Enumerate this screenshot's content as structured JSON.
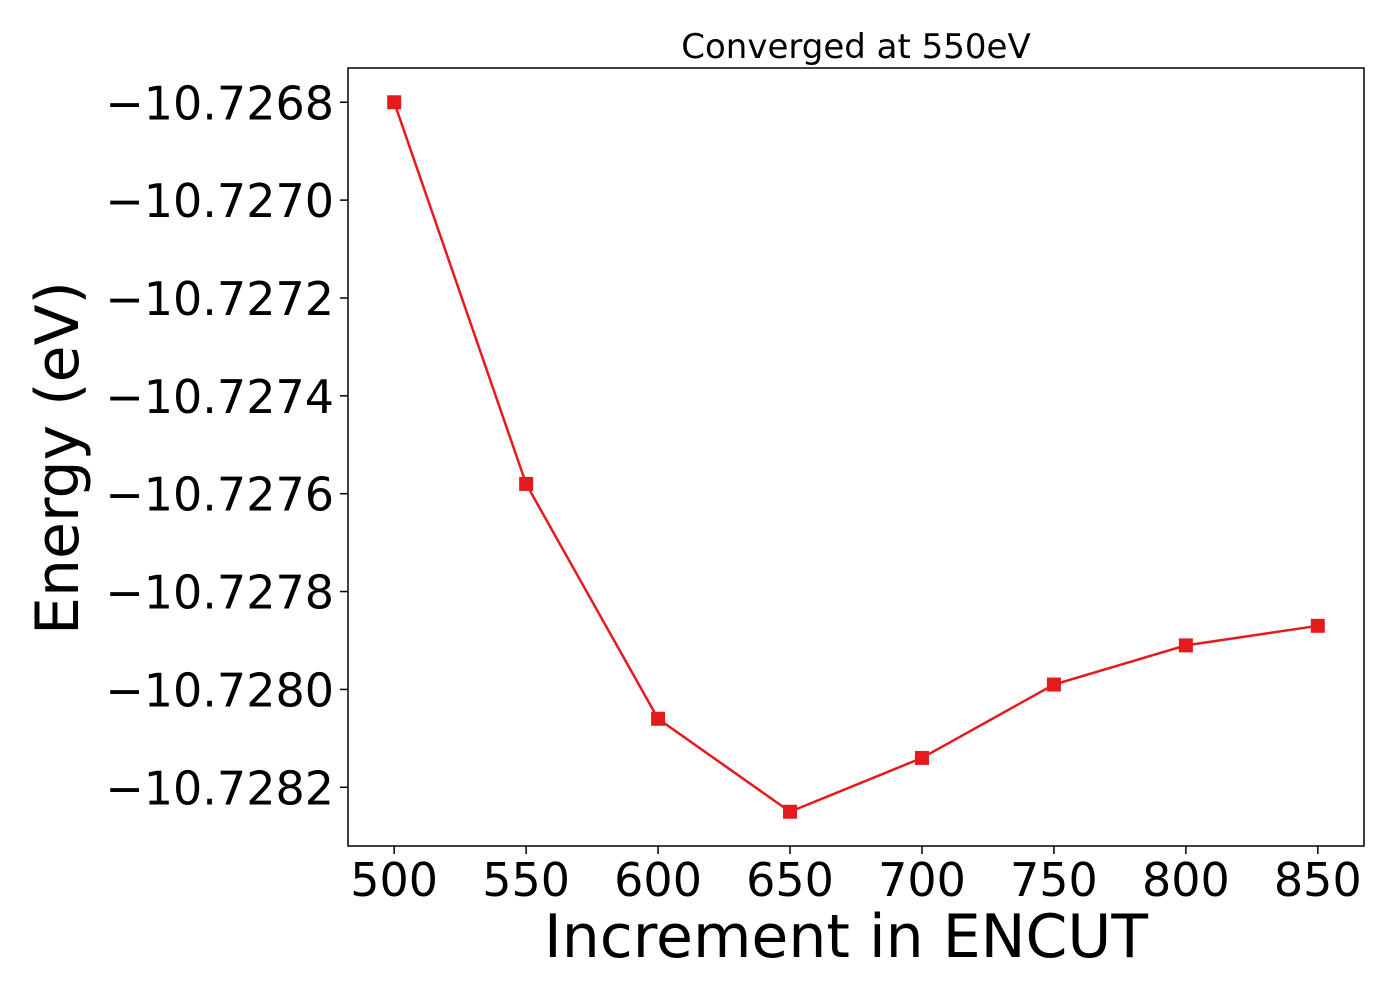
{
  "chart_data": {
    "type": "line",
    "title": "Converged at 550eV",
    "xlabel": "Increment in ENCUT",
    "ylabel": "Energy (eV)",
    "x": [
      500,
      550,
      600,
      650,
      700,
      750,
      800,
      850
    ],
    "series": [
      {
        "values": [
          -10.7268,
          -10.72758,
          -10.72806,
          -10.72825,
          -10.72814,
          -10.72799,
          -10.72791,
          -10.72787
        ],
        "color": "#e41a1c",
        "marker": "square"
      }
    ],
    "xticks": [
      500,
      550,
      600,
      650,
      700,
      750,
      800,
      850
    ],
    "xtick_labels": [
      "500",
      "550",
      "600",
      "650",
      "700",
      "750",
      "800",
      "850"
    ],
    "yticks": [
      -10.7268,
      -10.727,
      -10.7272,
      -10.7274,
      -10.7276,
      -10.7278,
      -10.728,
      -10.7282
    ],
    "ytick_labels": [
      "−10.7268",
      "−10.7270",
      "−10.7272",
      "−10.7274",
      "−10.7276",
      "−10.7278",
      "−10.7280",
      "−10.7282"
    ],
    "xlim": [
      482.5,
      867.5
    ],
    "ylim": [
      -10.72832,
      -10.72673
    ],
    "grid": false,
    "legend": "none"
  }
}
